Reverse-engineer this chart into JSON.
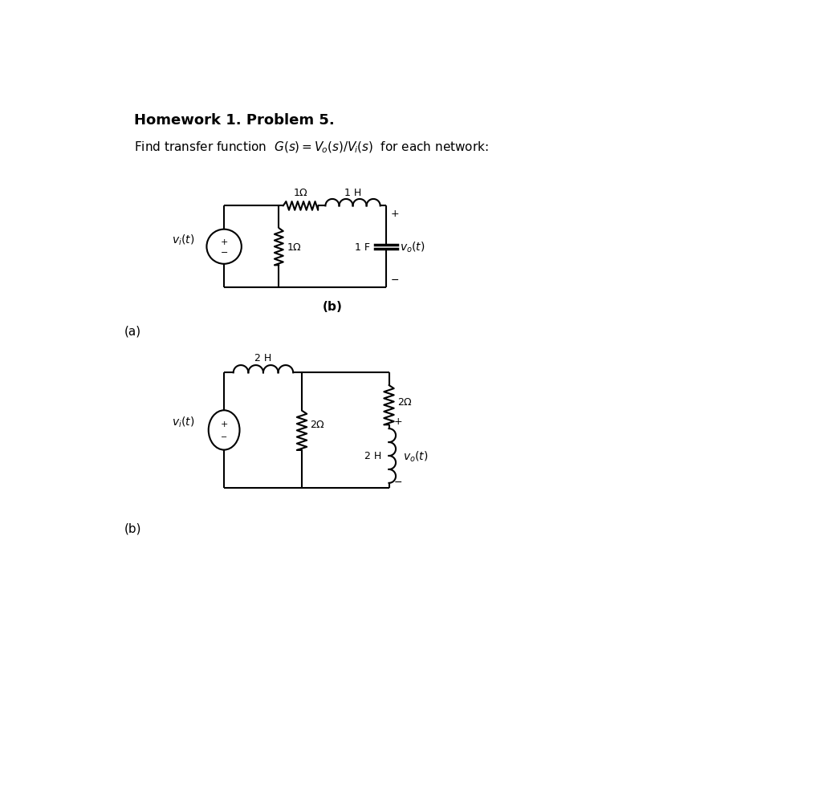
{
  "title": "Homework 1. Problem 5.",
  "subtitle_plain": "Find transfer function ",
  "subtitle_math": "G(s)=V_o(s)/V_i(s)",
  "subtitle_end": " for each network:",
  "bg_color": "#ffffff",
  "line_color": "#000000",
  "lw": 1.5,
  "fig_w": 10.24,
  "fig_h": 10.03,
  "dpi": 100,
  "label_a": "(a)",
  "label_b": "(b)",
  "label_b_italic": "(b)"
}
